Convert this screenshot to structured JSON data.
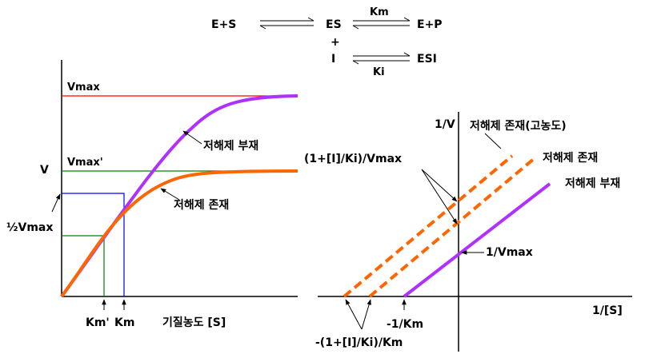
{
  "reaction": {
    "e_plus_s": "E+S",
    "es": "ES",
    "km": "Km",
    "e_plus_p": "E+P",
    "plus": "+",
    "i": "I",
    "esi": "ESI",
    "ki": "Ki"
  },
  "left_plot": {
    "vmax_label": "Vmax",
    "vmax_prime_label": "Vmax'",
    "y_axis_label": "V",
    "half_vmax_label": "½Vmax",
    "curve_absent_label": "저해제 부재",
    "curve_present_label": "저해제 존재",
    "km_prime_label": "Km'",
    "km_label": "Km",
    "x_axis_label": "기질농도 [S]"
  },
  "right_plot": {
    "y_axis_label": "1/V",
    "x_axis_label": "1/[S]",
    "high_conc_label": "저해제 존재(고농도)",
    "present_label": "저해제 존재",
    "absent_label": "저해제 부재",
    "intercept_i_label": "(1+[I]/Ki)/Vmax",
    "one_over_vmax_label": "1/Vmax",
    "neg_one_over_km_label": "-1/Km",
    "neg_x_intercept_i_label": "-(1+[I]/Ki)/Km"
  },
  "colors": {
    "vmax_line": "#ff0000",
    "vmax_prime_line": "#008000",
    "absent_curve": "#b030ff",
    "present_curve": "#ff6600",
    "guide_blue": "#0000ff",
    "guide_green": "#008000"
  }
}
